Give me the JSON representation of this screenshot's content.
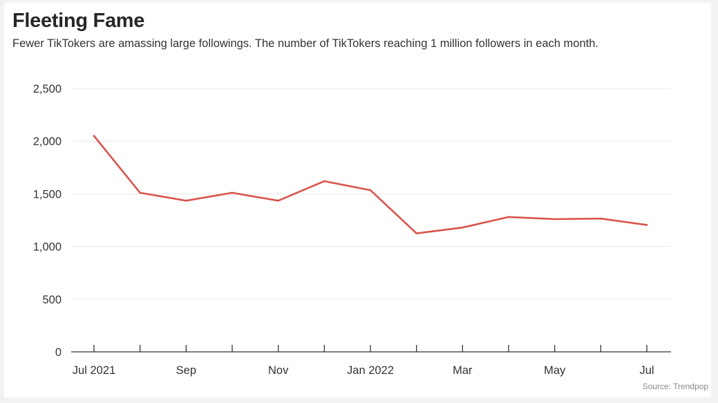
{
  "header": {
    "title": "Fleeting Fame",
    "subtitle": "Fewer TikTokers are amassing large followings. The number of TikTokers reaching 1 million followers in each month."
  },
  "footer": {
    "source": "Source: Trendpop"
  },
  "chart_data": {
    "type": "line",
    "title": "Fleeting Fame",
    "subtitle": "Fewer TikTokers are amassing large followings. The number of TikTokers reaching 1 million followers in each month.",
    "xlabel": "",
    "ylabel": "",
    "x": [
      "2021-07",
      "2021-08",
      "2021-09",
      "2021-10",
      "2021-11",
      "2021-12",
      "2022-01",
      "2022-02",
      "2022-03",
      "2022-04",
      "2022-05",
      "2022-06",
      "2022-07"
    ],
    "x_tick_labels": [
      "Jul 2021",
      "",
      "Sep",
      "",
      "Nov",
      "",
      "Jan 2022",
      "",
      "Mar",
      "",
      "May",
      "",
      "Jul"
    ],
    "y_ticks": [
      0,
      500,
      1000,
      1500,
      2000,
      2500
    ],
    "y_tick_labels": [
      "0",
      "500",
      "1,000",
      "1,500",
      "2,000",
      "2,500"
    ],
    "ylim": [
      0,
      2500
    ],
    "grid": true,
    "series": [
      {
        "values": [
          2050,
          1510,
          1435,
          1510,
          1435,
          1620,
          1535,
          1125,
          1180,
          1280,
          1260,
          1265,
          1205
        ],
        "color": "#d9534a"
      }
    ],
    "colors": {
      "line": "#d9534a",
      "grid": "#e8e8e8",
      "axis": "#333333"
    }
  }
}
